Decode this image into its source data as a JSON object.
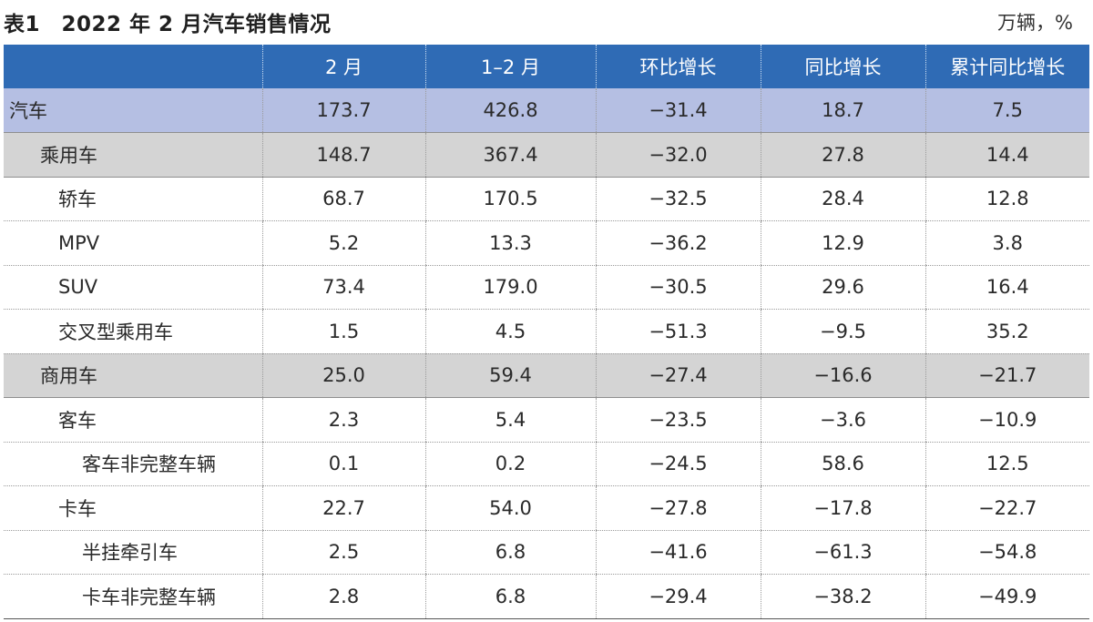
{
  "title": "表1　2022 年 2 月汽车销售情况",
  "unit": "万辆，%",
  "columns": [
    "",
    "2 月",
    "1–2 月",
    "环比增长",
    "同比增长",
    "累计同比增长"
  ],
  "rows": [
    {
      "level": 0,
      "name": "汽车",
      "values": [
        "173.7",
        "426.8",
        "−31.4",
        "18.7",
        "7.5"
      ]
    },
    {
      "level": 1,
      "name": "乘用车",
      "values": [
        "148.7",
        "367.4",
        "−32.0",
        "27.8",
        "14.4"
      ]
    },
    {
      "level": 2,
      "name": "轿车",
      "values": [
        "68.7",
        "170.5",
        "−32.5",
        "28.4",
        "12.8"
      ]
    },
    {
      "level": 2,
      "name": "MPV",
      "values": [
        "5.2",
        "13.3",
        "−36.2",
        "12.9",
        "3.8"
      ]
    },
    {
      "level": 2,
      "name": "SUV",
      "values": [
        "73.4",
        "179.0",
        "−30.5",
        "29.6",
        "16.4"
      ]
    },
    {
      "level": 2,
      "name": "交叉型乘用车",
      "values": [
        "1.5",
        "4.5",
        "−51.3",
        "−9.5",
        "35.2"
      ]
    },
    {
      "level": 1,
      "name": "商用车",
      "values": [
        "25.0",
        "59.4",
        "−27.4",
        "−16.6",
        "−21.7"
      ]
    },
    {
      "level": 2,
      "name": "客车",
      "values": [
        "2.3",
        "5.4",
        "−23.5",
        "−3.6",
        "−10.9"
      ]
    },
    {
      "level": 3,
      "name": "客车非完整车辆",
      "values": [
        "0.1",
        "0.2",
        "−24.5",
        "58.6",
        "12.5"
      ]
    },
    {
      "level": 2,
      "name": "卡车",
      "values": [
        "22.7",
        "54.0",
        "−27.8",
        "−17.8",
        "−22.7"
      ]
    },
    {
      "level": 3,
      "name": "半挂牵引车",
      "values": [
        "2.5",
        "6.8",
        "−41.6",
        "−61.3",
        "−54.8"
      ]
    },
    {
      "level": 3,
      "name": "卡车非完整车辆",
      "values": [
        "2.8",
        "6.8",
        "−29.4",
        "−38.2",
        "−49.9"
      ]
    }
  ]
}
